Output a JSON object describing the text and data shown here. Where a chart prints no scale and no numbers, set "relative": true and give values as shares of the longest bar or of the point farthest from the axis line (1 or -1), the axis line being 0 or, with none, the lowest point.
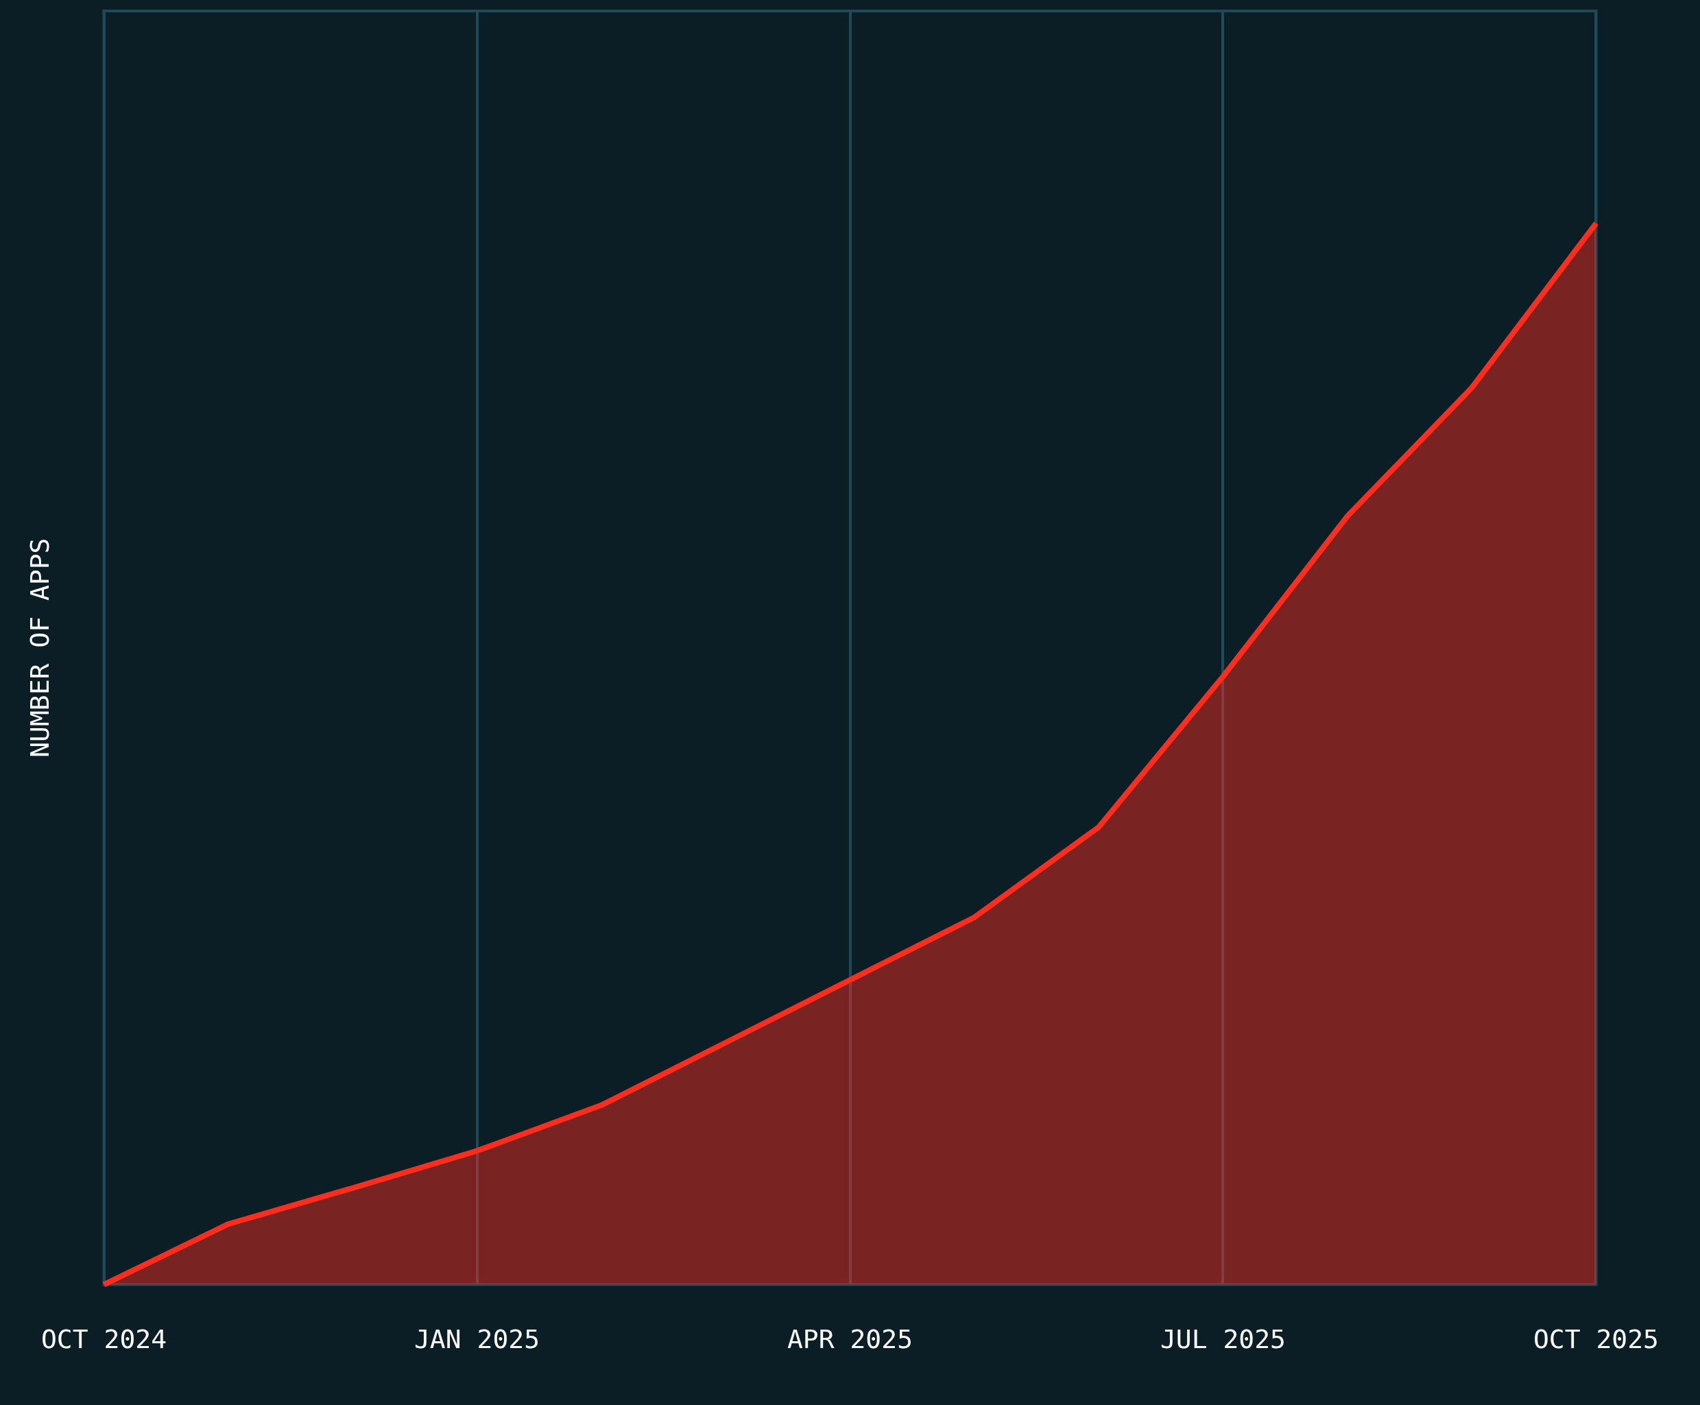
{
  "chart_data": {
    "type": "area",
    "ylabel": "NUMBER OF APPS",
    "relative": true,
    "grid": "x",
    "legend": false,
    "marker": "none",
    "categories": [
      "OCT 2024",
      null,
      null,
      "JAN 2025",
      null,
      null,
      "APR 2025",
      null,
      null,
      "JUL 2025",
      null,
      null,
      "OCT 2025"
    ],
    "series": [
      {
        "color": "#ff2d1e",
        "values": [
          0,
          0.057,
          0.091,
          0.126,
          0.169,
          0.228,
          0.287,
          0.346,
          0.431,
          0.573,
          0.724,
          0.845,
          1
        ]
      }
    ]
  }
}
